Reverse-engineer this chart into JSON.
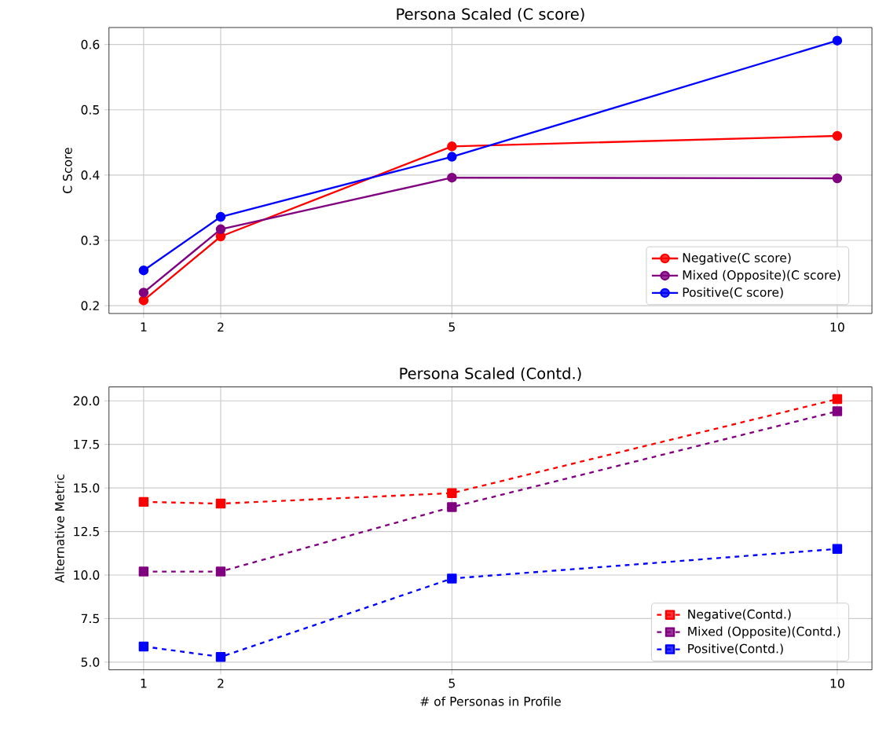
{
  "chart_data": [
    {
      "type": "line",
      "title": "Persona Scaled (C score)",
      "ylabel": "C Score",
      "x": [
        1,
        2,
        5,
        10
      ],
      "series": [
        {
          "name": "Negative(C score)",
          "color": "#ff0000",
          "values": [
            0.208,
            0.306,
            0.444,
            0.46
          ]
        },
        {
          "name": "Mixed (Opposite)(C score)",
          "color": "#800080",
          "values": [
            0.22,
            0.317,
            0.396,
            0.395
          ]
        },
        {
          "name": "Positive(C score)",
          "color": "#0000ff",
          "values": [
            0.254,
            0.336,
            0.428,
            0.606
          ]
        }
      ],
      "xlim": [
        0.55,
        10.45
      ],
      "ylim": [
        0.188,
        0.626
      ],
      "xticks": [
        1,
        2,
        5,
        10
      ],
      "yticks": [
        0.2,
        0.3,
        0.4,
        0.5,
        0.6
      ],
      "grid": true,
      "legend": "bottom right",
      "marker": "circle",
      "line_style": "solid"
    },
    {
      "type": "line",
      "title": "Persona Scaled (Contd.)",
      "xlabel": "# of Personas in Profile",
      "ylabel": "Alternative Metric",
      "x": [
        1,
        2,
        5,
        10
      ],
      "series": [
        {
          "name": "Negative(Contd.)",
          "color": "#ff0000",
          "values": [
            14.2,
            14.1,
            14.7,
            20.1
          ]
        },
        {
          "name": "Mixed (Opposite)(Contd.)",
          "color": "#800080",
          "values": [
            10.2,
            10.2,
            13.9,
            19.4
          ]
        },
        {
          "name": "Positive(Contd.)",
          "color": "#0000ff",
          "values": [
            5.9,
            5.3,
            9.8,
            11.5
          ]
        }
      ],
      "xlim": [
        0.55,
        10.45
      ],
      "ylim": [
        4.56,
        20.8
      ],
      "xticks": [
        1,
        2,
        5,
        10
      ],
      "yticks": [
        {
          "value": 5,
          "label": "5.0"
        },
        {
          "value": 7.5,
          "label": "7.5"
        },
        {
          "value": 10,
          "label": "10.0"
        },
        {
          "value": 12.5,
          "label": "12.5"
        },
        {
          "value": 15,
          "label": "15.0"
        },
        {
          "value": 17.5,
          "label": "17.5"
        },
        {
          "value": 20,
          "label": "20.0"
        }
      ],
      "grid": true,
      "legend": "bottom right",
      "marker": "square",
      "line_style": "dashed"
    }
  ]
}
